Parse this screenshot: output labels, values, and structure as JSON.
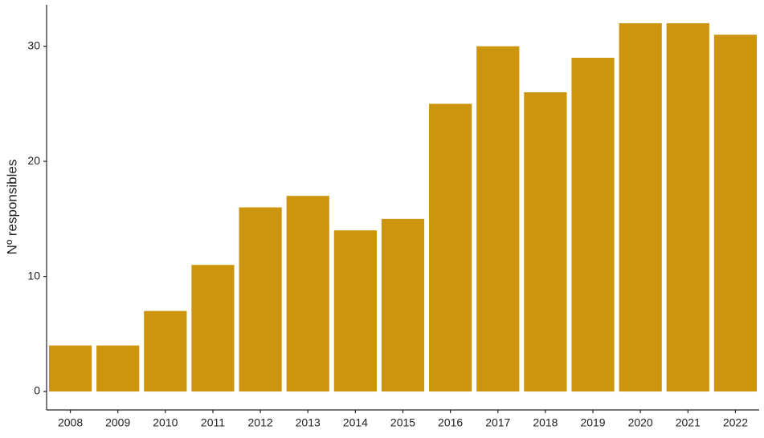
{
  "chart_data": {
    "type": "bar",
    "y_label": "Nº responsibles",
    "categories": [
      "2008",
      "2009",
      "2010",
      "2011",
      "2012",
      "2013",
      "2014",
      "2015",
      "2016",
      "2017",
      "2018",
      "2019",
      "2020",
      "2021",
      "2022"
    ],
    "values": [
      4,
      4,
      7,
      11,
      16,
      17,
      14,
      15,
      25,
      30,
      26,
      29,
      32,
      32,
      31
    ],
    "color": "#cc950d",
    "ylim": [
      -1.6,
      33.6
    ],
    "yticks": [
      0,
      10,
      20,
      30
    ],
    "grid": false
  }
}
